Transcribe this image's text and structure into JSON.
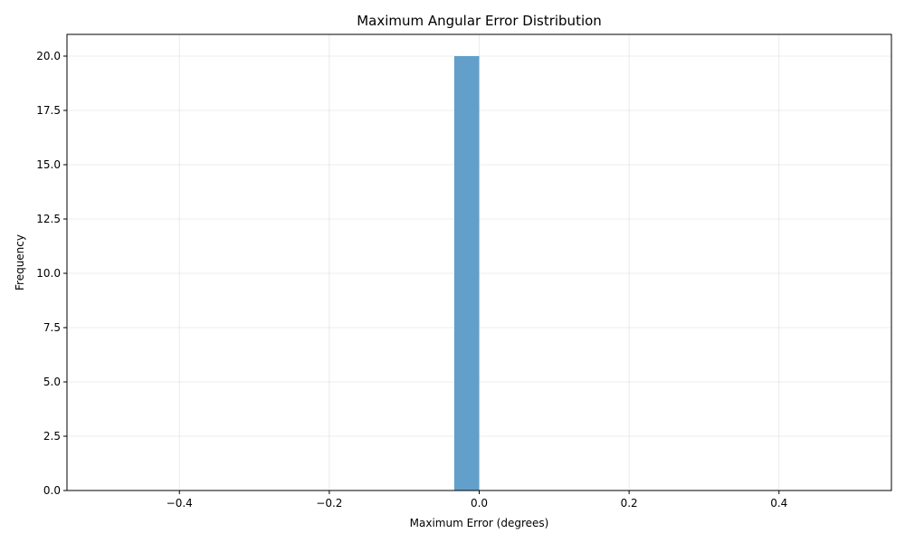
{
  "chart_data": {
    "type": "bar",
    "title": "Maximum Angular Error Distribution",
    "xlabel": "Maximum Error (degrees)",
    "ylabel": "Frequency",
    "xlim": [
      -0.55,
      0.55
    ],
    "ylim": [
      0,
      21
    ],
    "x_ticks": [
      -0.4,
      -0.2,
      0.0,
      0.2,
      0.4
    ],
    "x_tick_labels": [
      "−0.4",
      "−0.2",
      "0.0",
      "0.2",
      "0.4"
    ],
    "y_ticks": [
      0,
      2.5,
      5,
      7.5,
      10,
      12.5,
      15,
      17.5,
      20
    ],
    "y_tick_labels": [
      "0.0",
      "2.5",
      "5.0",
      "7.5",
      "10.0",
      "12.5",
      "15.0",
      "17.5",
      "20.0"
    ],
    "bins": [
      {
        "x0": -0.0333,
        "x1": 0.0,
        "count": 20
      }
    ],
    "grid": true,
    "bar_color": "#629fca"
  }
}
